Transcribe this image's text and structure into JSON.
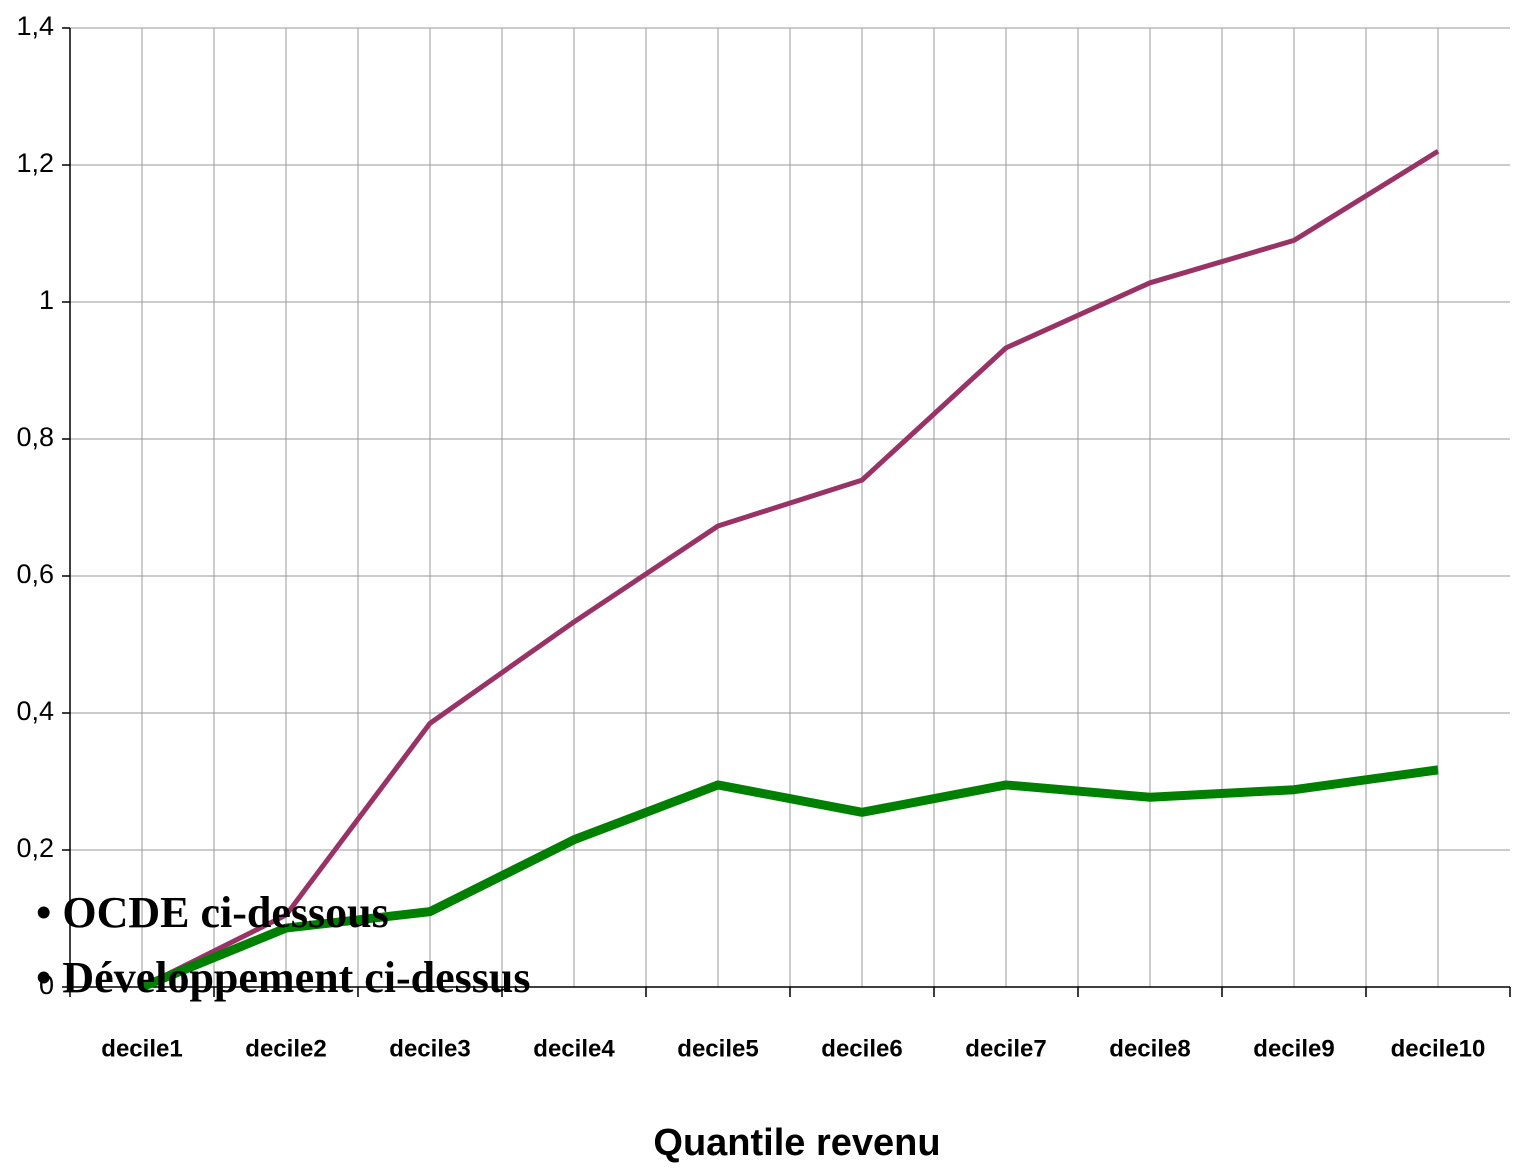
{
  "chart_data": {
    "type": "line",
    "xlabel": "Quantile revenu",
    "categories": [
      "decile1",
      "decile2",
      "decile3",
      "decile4",
      "decile5",
      "decile6",
      "decile7",
      "decile8",
      "decile9",
      "decile10"
    ],
    "series": [
      {
        "color": "#993366",
        "values": [
          0,
          0.105,
          0.385,
          0.533,
          0.673,
          0.74,
          0.933,
          1.028,
          1.09,
          1.22
        ]
      },
      {
        "color": "#008000",
        "values": [
          0,
          0.086,
          0.11,
          0.215,
          0.295,
          0.255,
          0.295,
          0.277,
          0.288,
          0.317
        ]
      }
    ],
    "ylim": [
      0,
      1.4
    ],
    "yticks": [
      0,
      {
        "value": 0.2,
        "label": "0,2"
      },
      {
        "value": 0.4,
        "label": "0,4"
      },
      {
        "value": 0.6,
        "label": "0,6"
      },
      {
        "value": 0.8,
        "label": "0,8"
      },
      1,
      {
        "value": 1.2,
        "label": "1,2"
      },
      {
        "value": 1.4,
        "label": "1,4"
      }
    ],
    "grid": true,
    "annotations": [
      "• OCDE ci-dessous",
      "• Développement ci-dessus"
    ]
  }
}
